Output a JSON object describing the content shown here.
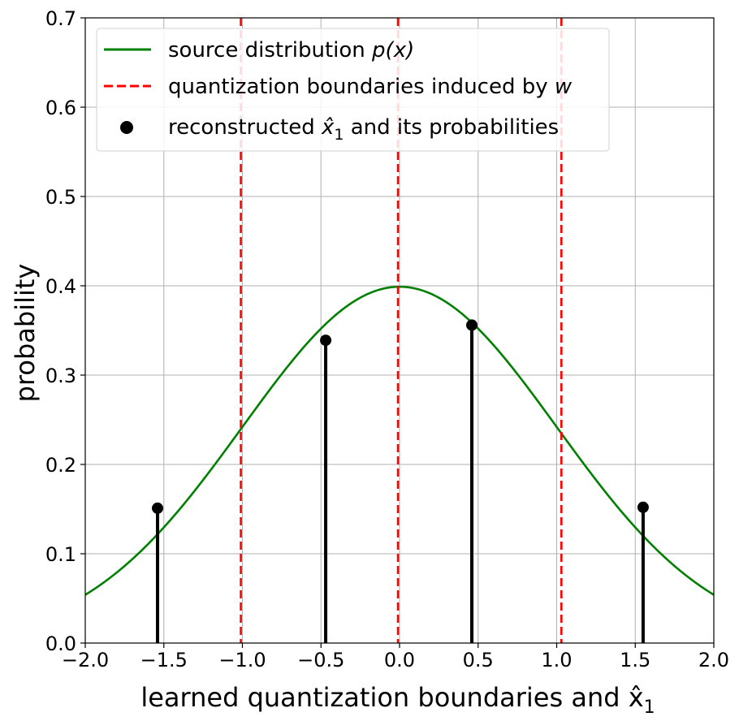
{
  "chart_data": {
    "type": "line",
    "xlabel": "learned quantization boundaries and x̂",
    "xlabel_subscript": "1",
    "ylabel": "probability",
    "xlim": [
      -2.0,
      2.0
    ],
    "ylim": [
      0.0,
      0.7
    ],
    "xticks": [
      -2.0,
      -1.5,
      -1.0,
      -0.5,
      0.0,
      0.5,
      1.0,
      1.5,
      2.0
    ],
    "xtick_labels": [
      "−2.0",
      "−1.5",
      "−1.0",
      "−0.5",
      "0.0",
      "0.5",
      "1.0",
      "1.5",
      "2.0"
    ],
    "yticks": [
      0.0,
      0.1,
      0.2,
      0.3,
      0.4,
      0.5,
      0.6,
      0.7
    ],
    "ytick_labels": [
      "0.0",
      "0.1",
      "0.2",
      "0.3",
      "0.4",
      "0.5",
      "0.6",
      "0.7"
    ],
    "grid": true,
    "legend_position": "top-left",
    "source_distribution": {
      "type": "standard-normal-pdf",
      "mean": 0.0,
      "std": 1.0,
      "color": "#008000",
      "legend_label": "source distribution ",
      "legend_math": "p(x)"
    },
    "boundaries": {
      "x": [
        -1.01,
        -0.01,
        1.03
      ],
      "color": "#ff0000",
      "style": "dashed",
      "legend_label": "quantization boundaries induced by ",
      "legend_math": "w"
    },
    "reconstructions": {
      "x": [
        -1.54,
        -0.47,
        0.46,
        1.55
      ],
      "y": [
        0.151,
        0.339,
        0.356,
        0.152
      ],
      "color": "#000000",
      "legend_label": "reconstructed ",
      "legend_math": "x̂",
      "legend_math_subscript": "1",
      "legend_suffix": " and its probabilities"
    }
  }
}
